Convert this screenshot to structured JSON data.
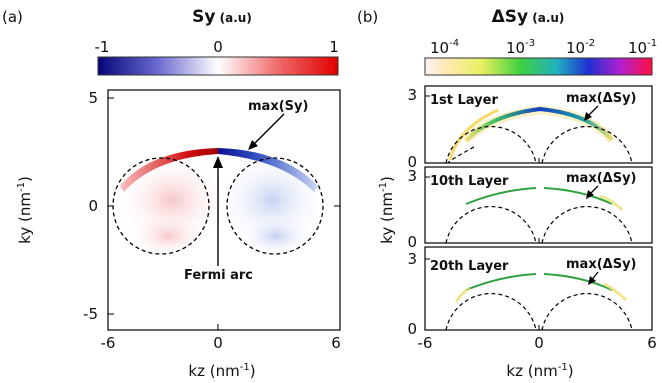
{
  "panel_a": {
    "letter": "(a)",
    "title_main": "Sy",
    "title_unit": " (a.u)",
    "colorbar_ticks": [
      "-1",
      "0",
      "1"
    ],
    "xlabel": "kz (nm",
    "xlabel_sup": "-1",
    "xlabel_close": ")",
    "ylabel": "ky (nm",
    "ylabel_sup": "-1",
    "ylabel_close": ")",
    "xticks": [
      "-6",
      "0",
      "6"
    ],
    "yticks": [
      "5",
      "0",
      "-5"
    ],
    "annotation_max": "max(Sy)",
    "annotation_arc": "Fermi arc"
  },
  "panel_b": {
    "letter": "(b)",
    "title_main": "ΔSy",
    "title_unit": " (a.u)",
    "colorbar_tick_base": "10",
    "colorbar_tick_exps": [
      "-4",
      "-3",
      "-2",
      "-1"
    ],
    "xlabel": "kz (nm",
    "xlabel_sup": "-1",
    "xlabel_close": ")",
    "ylabel": "ky (nm",
    "ylabel_sup": "-1",
    "ylabel_close": ")",
    "xticks": [
      "-6",
      "0",
      "6"
    ],
    "subplots": [
      {
        "layer": "1st Layer",
        "annotation": "max(ΔSy)",
        "yticks": [
          "3",
          "0"
        ]
      },
      {
        "layer": "10th Layer",
        "annotation": "max(ΔSy)",
        "yticks": [
          "3",
          "0"
        ]
      },
      {
        "layer": "20th Layer",
        "annotation": "max(ΔSy)",
        "yticks": [
          "3",
          "0"
        ]
      }
    ]
  },
  "chart_data": [
    {
      "type": "heatmap",
      "title": "Sy (a.u)",
      "xlabel": "kz (nm-1)",
      "ylabel": "ky (nm-1)",
      "xlim": [
        -6,
        6
      ],
      "ylim": [
        -5.5,
        5
      ],
      "colorbar_range": [
        -1,
        1
      ],
      "colormap": [
        "#0a0a8c",
        "#ffffff",
        "#e00000"
      ],
      "fermi_circles": [
        {
          "center": [
            -2.9,
            0
          ],
          "radius": 2.5
        },
        {
          "center": [
            2.9,
            0
          ],
          "radius": 2.5
        }
      ],
      "fermi_arc_peak": [
        0,
        2.7
      ]
    },
    {
      "type": "heatmap",
      "title": "ΔSy (a.u)",
      "xlabel": "kz (nm-1)",
      "ylabel": "ky (nm-1)",
      "xlim": [
        -6,
        6
      ],
      "ylim": [
        0,
        3
      ],
      "colorbar_scale": "log",
      "colorbar_range": [
        0.0001,
        0.1
      ],
      "layers": [
        "1st Layer",
        "10th Layer",
        "20th Layer"
      ]
    }
  ]
}
